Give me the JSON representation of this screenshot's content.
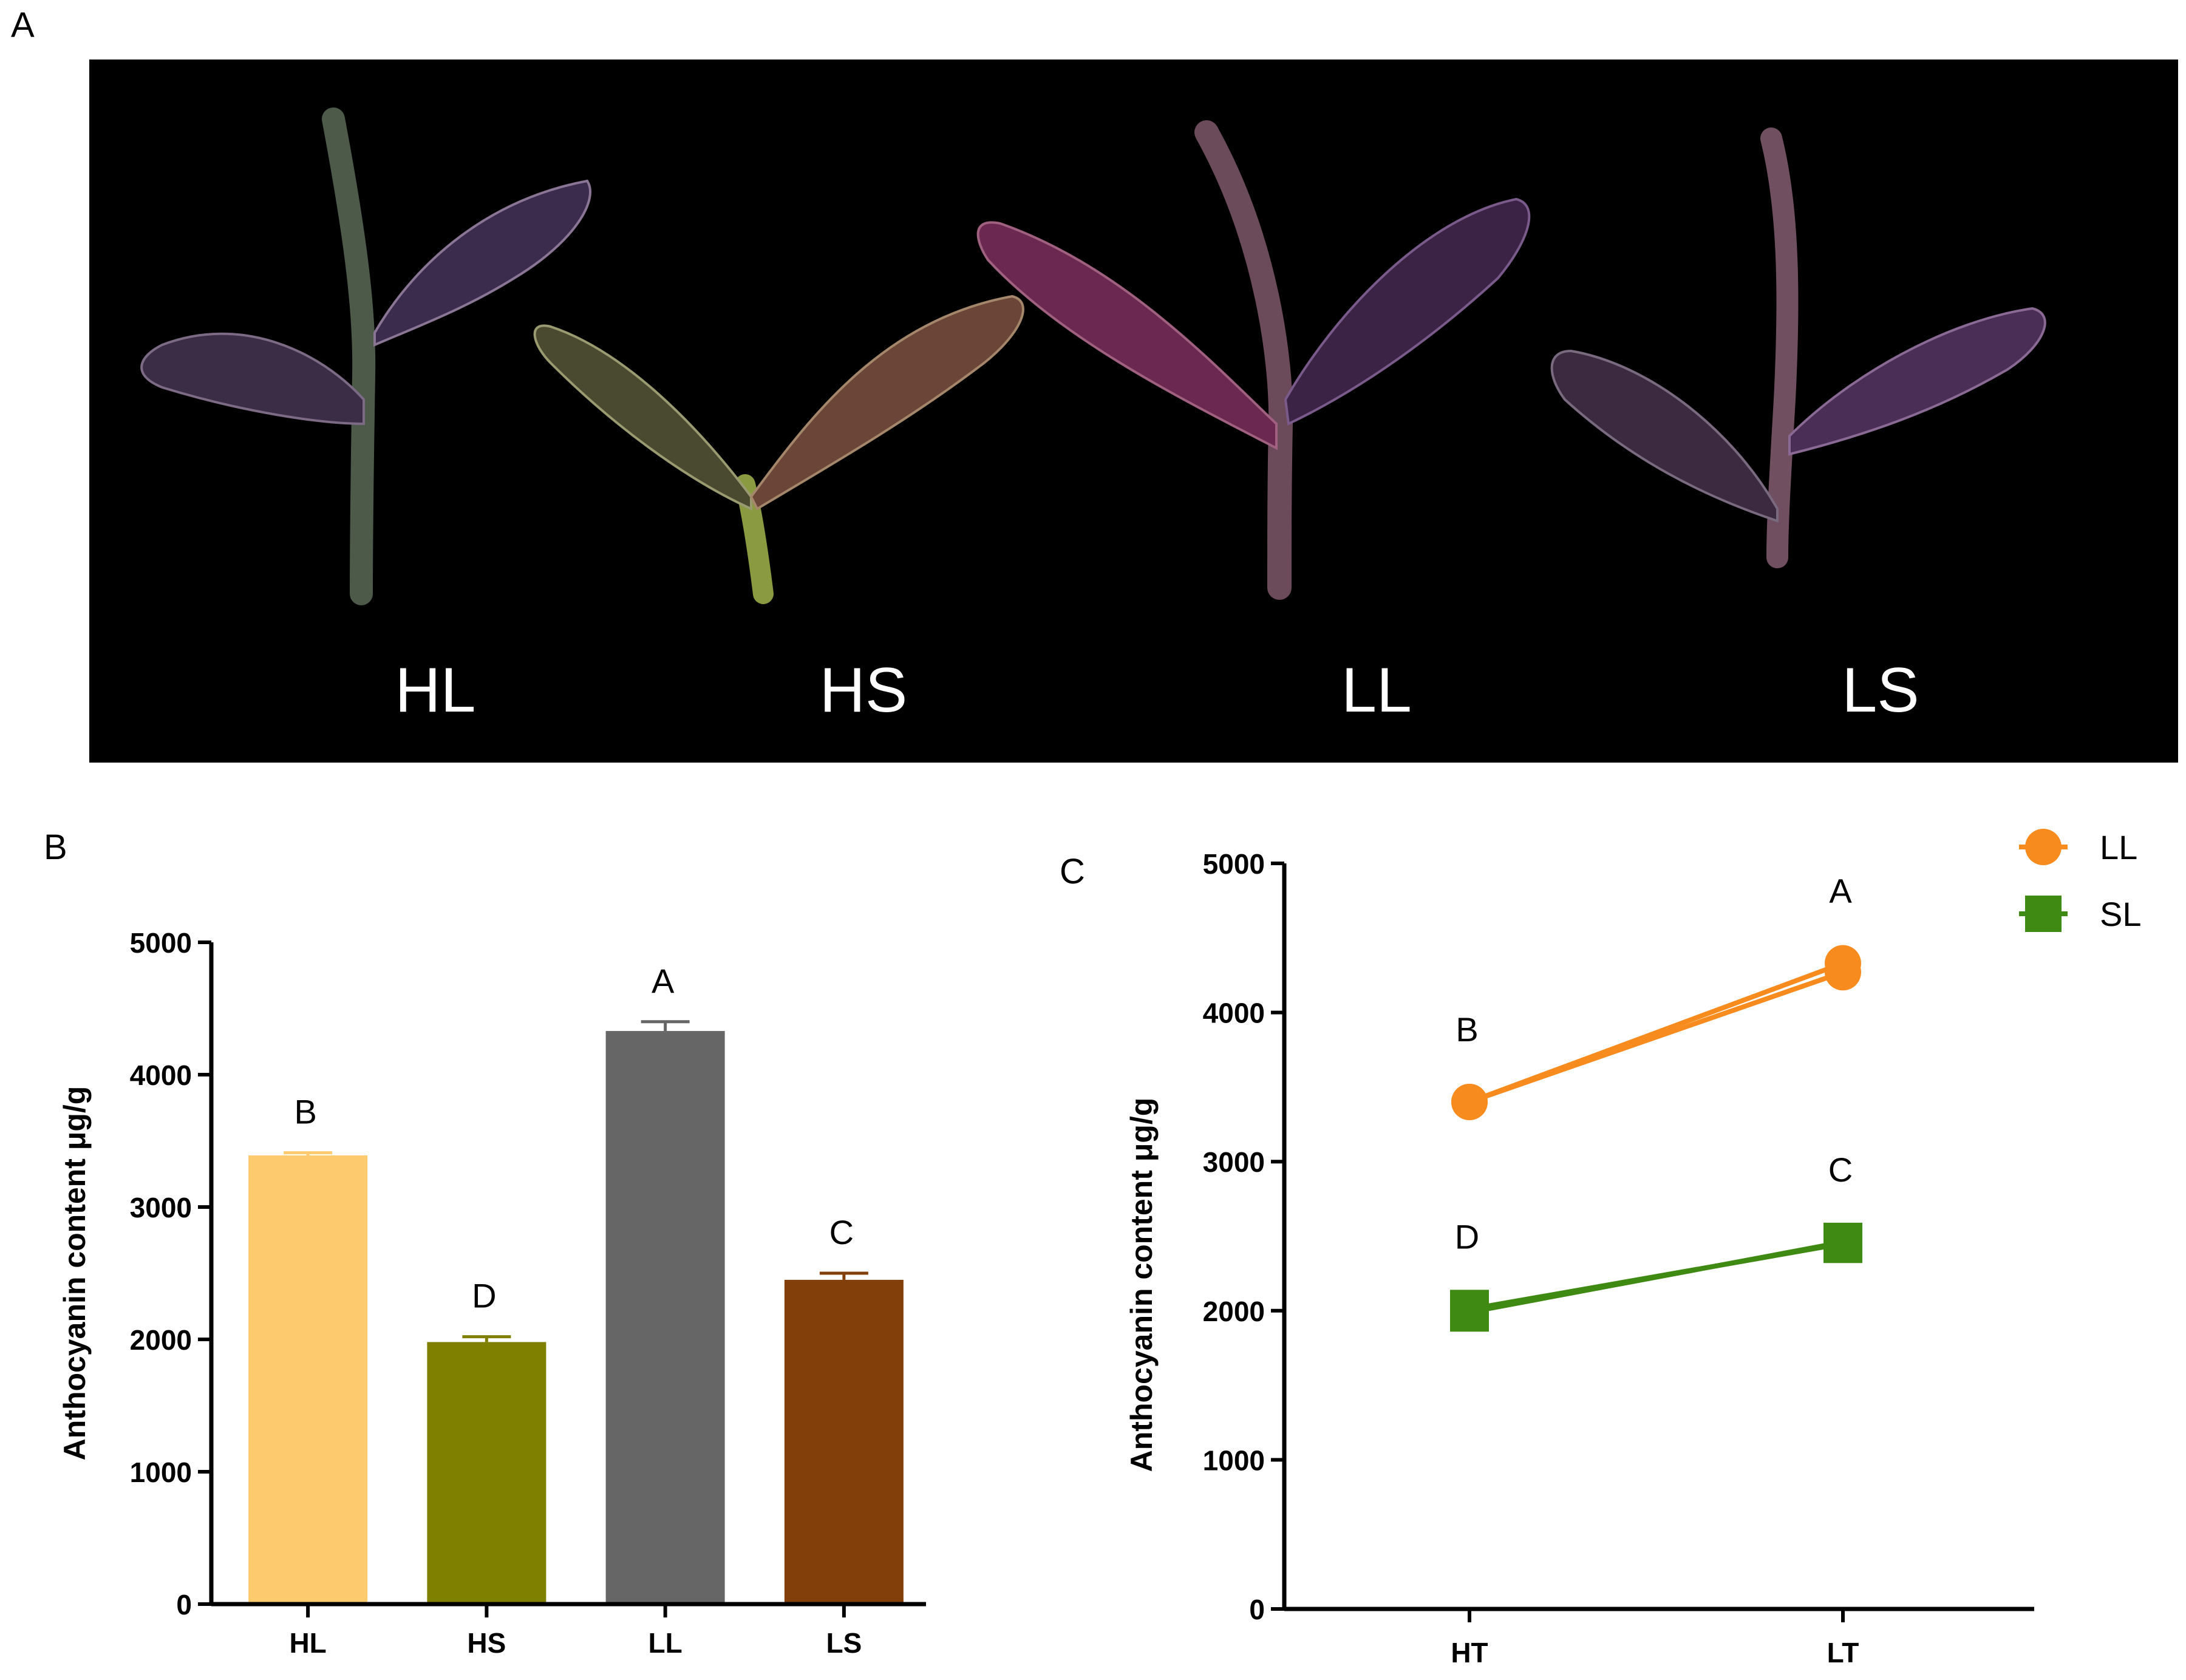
{
  "panel_labels": {
    "a": "A",
    "b": "B",
    "c": "C"
  },
  "photo": {
    "description_icons": [
      "leaf-seedling-icon"
    ],
    "seedlings": [
      {
        "label": "HL",
        "color": "#3a2d45"
      },
      {
        "label": "HS",
        "color": "#5d5a38"
      },
      {
        "label": "LL",
        "color": "#6b2850"
      },
      {
        "label": "LS",
        "color": "#4a2e55"
      }
    ]
  },
  "chart_data": [
    {
      "id": "B",
      "type": "bar",
      "ylabel": "Anthocyanin content  μg/g",
      "ylim": [
        0,
        5000
      ],
      "yticks": [
        "0",
        "1000",
        "2000",
        "3000",
        "4000",
        "5000"
      ],
      "categories": [
        "HL",
        "HS",
        "LL",
        "LS"
      ],
      "values": [
        3390,
        1980,
        4330,
        2450
      ],
      "errors": [
        20,
        40,
        70,
        50
      ],
      "colors": [
        "#FDCB6E",
        "#808000",
        "#666666",
        "#833F09"
      ],
      "letters": [
        "B",
        "D",
        "A",
        "C"
      ]
    },
    {
      "id": "C",
      "type": "line",
      "ylabel": "Anthocyanin content  μg/g",
      "ylim": [
        0,
        5000
      ],
      "yticks": [
        "0",
        "1000",
        "2000",
        "3000",
        "4000",
        "5000"
      ],
      "x": [
        "HT",
        "LT"
      ],
      "series": [
        {
          "name": "LL",
          "marker": "circle",
          "color": "#F78B1E",
          "values": [
            3400,
            4330
          ],
          "values_alt": [
            3400,
            4270
          ],
          "letters": [
            "B",
            "A"
          ]
        },
        {
          "name": "SL",
          "marker": "square",
          "color": "#3E8A12",
          "values": [
            1990,
            2460
          ],
          "values_alt": [
            2010,
            2450
          ],
          "letters": [
            "D",
            "C"
          ]
        }
      ],
      "legend_position": "top-right"
    }
  ]
}
